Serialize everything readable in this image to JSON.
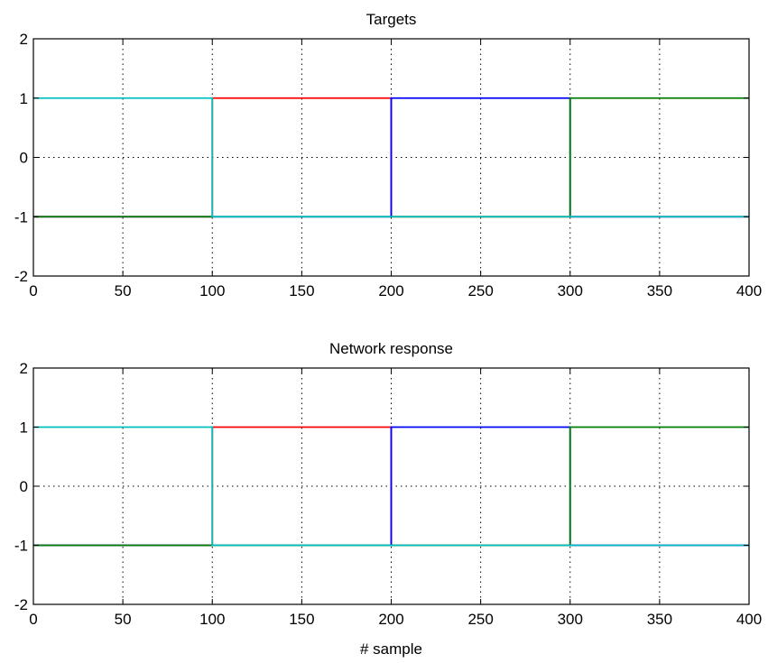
{
  "chart_data": [
    {
      "type": "line",
      "title": "Targets",
      "xlabel": "",
      "ylabel": "",
      "xlim": [
        0,
        400
      ],
      "ylim": [
        -2,
        2
      ],
      "xticks": [
        0,
        50,
        100,
        150,
        200,
        250,
        300,
        350,
        400
      ],
      "yticks": [
        -2,
        -1,
        0,
        1,
        2
      ],
      "xtick_labels": [
        "0",
        "50",
        "100",
        "150",
        "200",
        "250",
        "300",
        "350",
        "400"
      ],
      "ytick_labels": [
        "-2",
        "-1",
        "0",
        "1",
        "2"
      ],
      "grid": true,
      "legend": "none",
      "series": [
        {
          "color": "#ff0000",
          "x": [
            0,
            100,
            100,
            200,
            200,
            400
          ],
          "y": [
            -1,
            -1,
            1,
            1,
            -1,
            -1
          ]
        },
        {
          "color": "#0000ff",
          "x": [
            0,
            200,
            200,
            300,
            300,
            400
          ],
          "y": [
            -1,
            -1,
            1,
            1,
            -1,
            -1
          ]
        },
        {
          "color": "#008000",
          "x": [
            0,
            300,
            300,
            400
          ],
          "y": [
            -1,
            -1,
            1,
            1
          ]
        },
        {
          "color": "#00bfbf",
          "x": [
            0,
            100,
            100,
            400
          ],
          "y": [
            1,
            1,
            -1,
            -1
          ]
        }
      ]
    },
    {
      "type": "line",
      "title": "Network response",
      "xlabel": "# sample",
      "ylabel": "",
      "xlim": [
        0,
        400
      ],
      "ylim": [
        -2,
        2
      ],
      "xticks": [
        0,
        50,
        100,
        150,
        200,
        250,
        300,
        350,
        400
      ],
      "yticks": [
        -2,
        -1,
        0,
        1,
        2
      ],
      "xtick_labels": [
        "0",
        "50",
        "100",
        "150",
        "200",
        "250",
        "300",
        "350",
        "400"
      ],
      "ytick_labels": [
        "-2",
        "-1",
        "0",
        "1",
        "2"
      ],
      "grid": true,
      "legend": "none",
      "series": [
        {
          "color": "#ff0000",
          "x": [
            0,
            100,
            100,
            200,
            200,
            400
          ],
          "y": [
            -1,
            -1,
            1,
            1,
            -1,
            -1
          ]
        },
        {
          "color": "#0000ff",
          "x": [
            0,
            200,
            200,
            300,
            300,
            400
          ],
          "y": [
            -1,
            -1,
            1,
            1,
            -1,
            -1
          ]
        },
        {
          "color": "#008000",
          "x": [
            0,
            300,
            300,
            400
          ],
          "y": [
            -1,
            -1,
            1,
            1
          ]
        },
        {
          "color": "#00bfbf",
          "x": [
            0,
            100,
            100,
            400
          ],
          "y": [
            1,
            1,
            -1,
            -1
          ]
        }
      ]
    }
  ]
}
